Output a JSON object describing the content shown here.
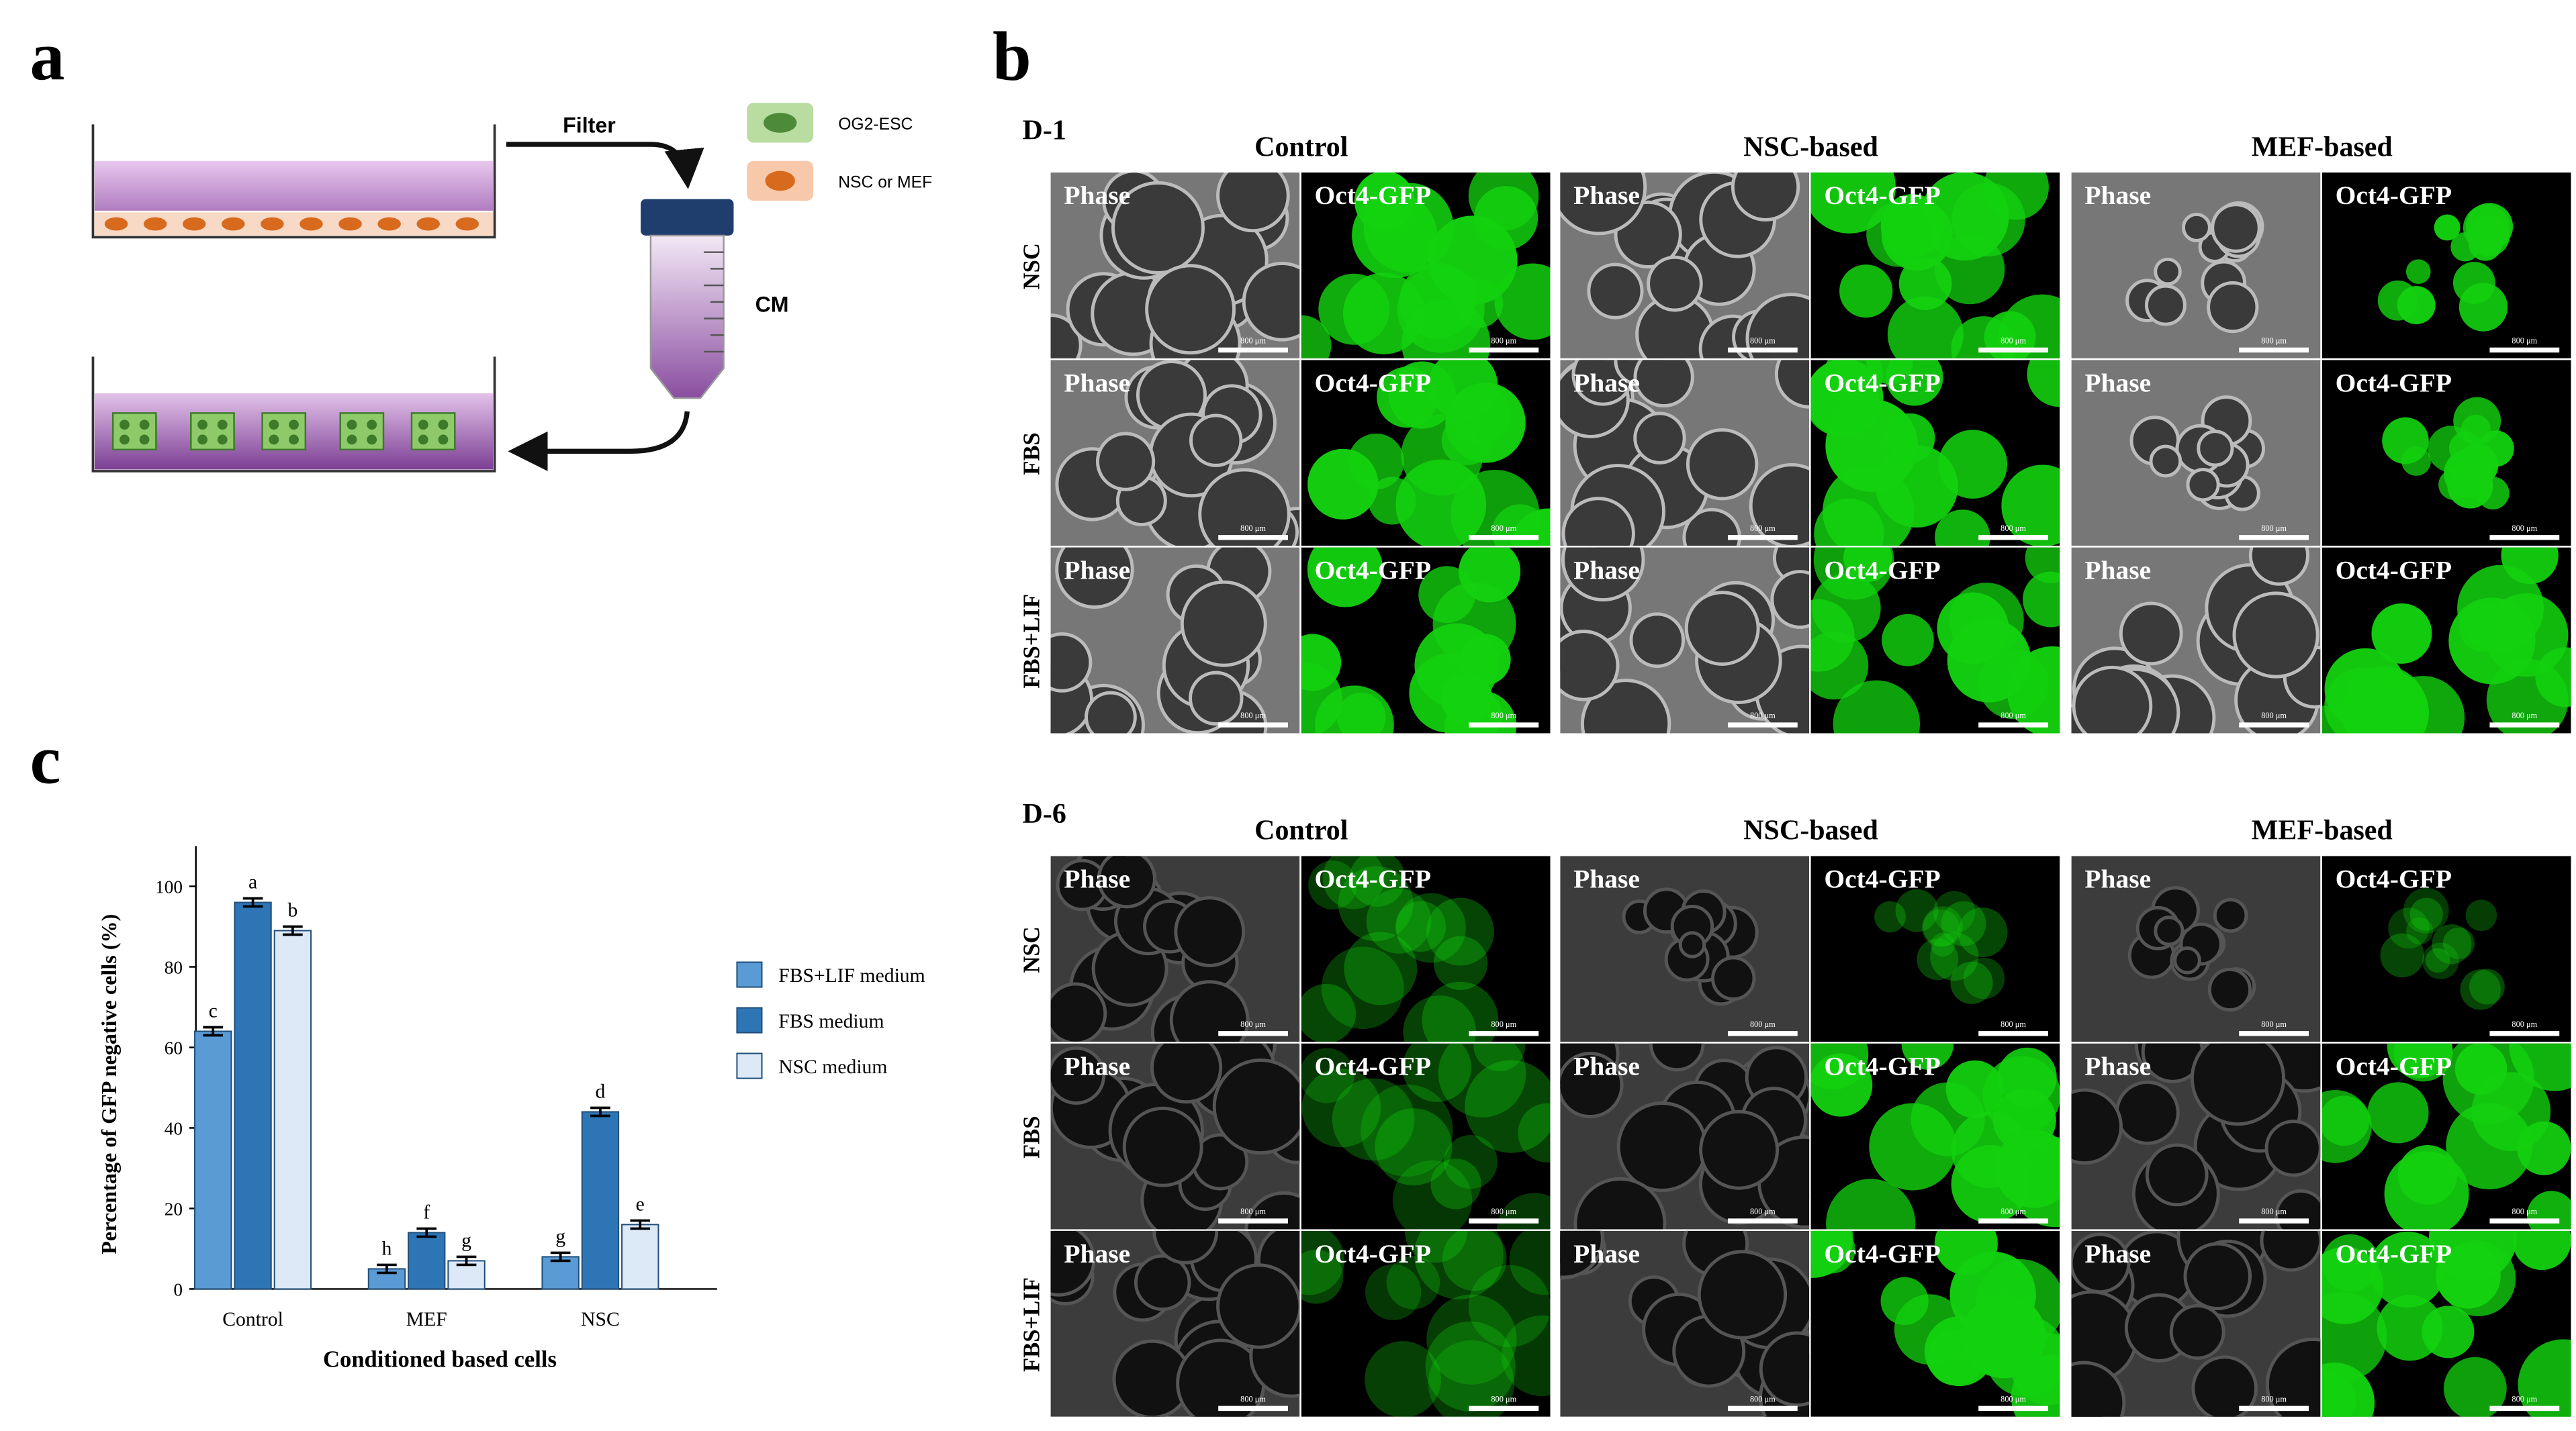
{
  "panels": {
    "a": {
      "letter": "a",
      "filter": "Filter",
      "cm": "CM",
      "legend": [
        "OG2-ESC",
        "NSC or MEF"
      ]
    },
    "b": {
      "letter": "b",
      "days": [
        "D-1",
        "D-6"
      ],
      "columns": [
        "Control",
        "NSC-based",
        "MEF-based"
      ],
      "rows": [
        "NSC",
        "FBS",
        "FBS+LIF"
      ],
      "image_labels": [
        "Phase",
        "Oct4-GFP"
      ],
      "scale_label": "800 μm"
    },
    "c": {
      "letter": "c"
    }
  },
  "chart_data": {
    "type": "bar",
    "y_label": "Percentage of GFP negative cells (%)",
    "x_label": "Conditioned based cells",
    "categories": [
      "Control",
      "MEF",
      "NSC"
    ],
    "series": [
      {
        "name": "FBS+LIF medium",
        "color": "#5b9bd5",
        "values": [
          64,
          5,
          8
        ],
        "errors": [
          1,
          1,
          1
        ],
        "letters": [
          "c",
          "h",
          "g"
        ]
      },
      {
        "name": "FBS medium",
        "color": "#2e75b6",
        "values": [
          96,
          14,
          44
        ],
        "errors": [
          1,
          1,
          1
        ],
        "letters": [
          "a",
          "f",
          "d"
        ]
      },
      {
        "name": "NSC medium",
        "color": "#dde9f7",
        "values": [
          89,
          7,
          16
        ],
        "errors": [
          1,
          1,
          1
        ],
        "letters": [
          "b",
          "g",
          "e"
        ]
      }
    ],
    "ylim": [
      0,
      110
    ],
    "yticks": [
      0,
      20,
      40,
      60,
      80,
      100
    ]
  }
}
